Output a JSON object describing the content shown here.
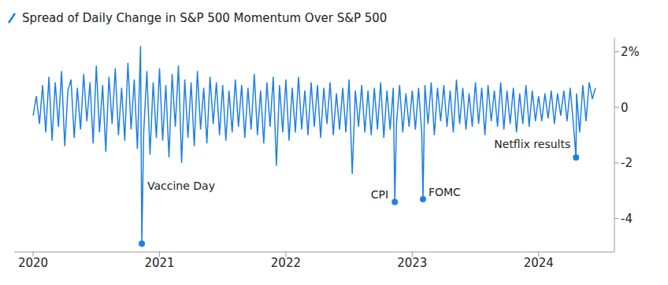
{
  "chart_data": {
    "type": "line",
    "title": "Spread of Daily Change in S&P 500 Momentum Over S&P 500",
    "color": "#1f80e6",
    "grid": false,
    "xlim": [
      2019.85,
      2024.6
    ],
    "xticks": [
      2020,
      2021,
      2022,
      2023,
      2024
    ],
    "ylim": [
      -5.2,
      2.5
    ],
    "yticks": [
      {
        "value": 2,
        "label": "2%"
      },
      0,
      -2,
      -4
    ],
    "x": [
      2020,
      2020.025,
      2020.05,
      2020.075,
      2020.1,
      2020.125,
      2020.15,
      2020.175,
      2020.2,
      2020.225,
      2020.25,
      2020.275,
      2020.3,
      2020.325,
      2020.35,
      2020.375,
      2020.4,
      2020.425,
      2020.45,
      2020.475,
      2020.5,
      2020.525,
      2020.55,
      2020.575,
      2020.6,
      2020.625,
      2020.65,
      2020.675,
      2020.7,
      2020.725,
      2020.75,
      2020.775,
      2020.8,
      2020.825,
      2020.85,
      2020.86,
      2020.875,
      2020.9,
      2020.925,
      2020.95,
      2020.975,
      2021,
      2021.025,
      2021.05,
      2021.075,
      2021.1,
      2021.125,
      2021.15,
      2021.175,
      2021.2,
      2021.225,
      2021.25,
      2021.275,
      2021.3,
      2021.325,
      2021.35,
      2021.375,
      2021.4,
      2021.425,
      2021.45,
      2021.475,
      2021.5,
      2021.525,
      2021.55,
      2021.575,
      2021.6,
      2021.625,
      2021.65,
      2021.675,
      2021.7,
      2021.725,
      2021.75,
      2021.775,
      2021.8,
      2021.825,
      2021.85,
      2021.875,
      2021.9,
      2021.925,
      2021.95,
      2021.975,
      2022,
      2022.025,
      2022.05,
      2022.075,
      2022.1,
      2022.125,
      2022.15,
      2022.175,
      2022.2,
      2022.225,
      2022.25,
      2022.275,
      2022.3,
      2022.325,
      2022.35,
      2022.375,
      2022.4,
      2022.425,
      2022.45,
      2022.475,
      2022.5,
      2022.525,
      2022.55,
      2022.575,
      2022.6,
      2022.625,
      2022.65,
      2022.675,
      2022.7,
      2022.725,
      2022.75,
      2022.775,
      2022.8,
      2022.825,
      2022.85,
      2022.862,
      2022.875,
      2022.9,
      2022.925,
      2022.95,
      2022.975,
      2023,
      2023.025,
      2023.05,
      2023.075,
      2023.085,
      2023.1,
      2023.125,
      2023.15,
      2023.175,
      2023.2,
      2023.225,
      2023.25,
      2023.275,
      2023.3,
      2023.325,
      2023.35,
      2023.375,
      2023.4,
      2023.425,
      2023.45,
      2023.475,
      2023.5,
      2023.525,
      2023.55,
      2023.575,
      2023.6,
      2023.625,
      2023.65,
      2023.675,
      2023.7,
      2023.725,
      2023.75,
      2023.775,
      2023.8,
      2023.825,
      2023.85,
      2023.875,
      2023.9,
      2023.925,
      2023.95,
      2023.975,
      2024,
      2024.025,
      2024.05,
      2024.075,
      2024.1,
      2024.125,
      2024.15,
      2024.175,
      2024.2,
      2024.225,
      2024.25,
      2024.275,
      2024.296,
      2024.3,
      2024.325,
      2024.35,
      2024.375,
      2024.4,
      2024.425,
      2024.45
    ],
    "values": [
      -0.3,
      0.4,
      -0.6,
      0.8,
      -0.9,
      1.1,
      -1.2,
      0.9,
      -0.7,
      1.3,
      -1.4,
      0.6,
      1.0,
      -1.1,
      0.7,
      -0.8,
      1.2,
      -0.5,
      0.9,
      -1.3,
      1.5,
      -0.9,
      0.8,
      -1.6,
      1.1,
      -0.6,
      1.4,
      -1.0,
      0.7,
      -1.2,
      1.6,
      -0.8,
      1.0,
      -1.5,
      2.2,
      -4.9,
      -0.9,
      1.3,
      -1.7,
      0.9,
      -1.1,
      1.4,
      -1.2,
      0.8,
      -1.8,
      1.2,
      -0.7,
      1.5,
      -2.0,
      1.0,
      -1.1,
      0.9,
      -1.4,
      1.3,
      -0.8,
      0.7,
      -1.3,
      1.1,
      -0.6,
      0.9,
      -1.0,
      0.8,
      -1.2,
      0.6,
      -0.9,
      1.0,
      -0.7,
      0.8,
      -1.1,
      0.7,
      -0.8,
      1.2,
      -1.0,
      0.6,
      -1.3,
      0.9,
      -0.7,
      1.1,
      -2.1,
      0.8,
      -0.9,
      1.0,
      -1.2,
      0.7,
      -0.9,
      1.1,
      -0.8,
      0.6,
      -1.0,
      0.9,
      -0.7,
      0.8,
      -1.1,
      0.7,
      -0.6,
      0.9,
      -1.0,
      0.5,
      -0.8,
      0.7,
      -0.9,
      1.0,
      -2.4,
      0.6,
      -0.7,
      0.8,
      -0.9,
      0.6,
      -1.0,
      0.7,
      -0.8,
      0.9,
      -1.1,
      0.6,
      -0.8,
      0.7,
      -3.4,
      -0.6,
      0.8,
      -0.9,
      0.5,
      -0.7,
      0.6,
      -0.8,
      0.7,
      -0.9,
      -3.3,
      0.8,
      -0.6,
      0.9,
      -1.0,
      0.7,
      -0.5,
      0.8,
      -0.7,
      0.6,
      -0.9,
      1.0,
      -0.6,
      0.7,
      -0.8,
      0.5,
      -0.7,
      0.9,
      -0.6,
      0.7,
      -1.0,
      0.8,
      -0.5,
      0.6,
      -0.7,
      0.9,
      -0.8,
      0.6,
      -0.6,
      0.7,
      -0.9,
      0.5,
      -0.6,
      0.8,
      -0.7,
      0.6,
      -0.5,
      0.4,
      -0.5,
      0.5,
      -0.4,
      0.6,
      -0.6,
      0.5,
      -0.3,
      0.6,
      -0.5,
      0.7,
      -0.6,
      -1.8,
      0.5,
      -0.9,
      0.8,
      -0.5,
      0.9,
      0.3,
      0.7
    ],
    "annotations": [
      {
        "label": "Vaccine Day",
        "x": 2020.86
      },
      {
        "label": "CPI",
        "x": 2022.862
      },
      {
        "label": "FOMC",
        "x": 2023.085
      },
      {
        "label": "Netflix results",
        "x": 2024.296
      }
    ]
  }
}
